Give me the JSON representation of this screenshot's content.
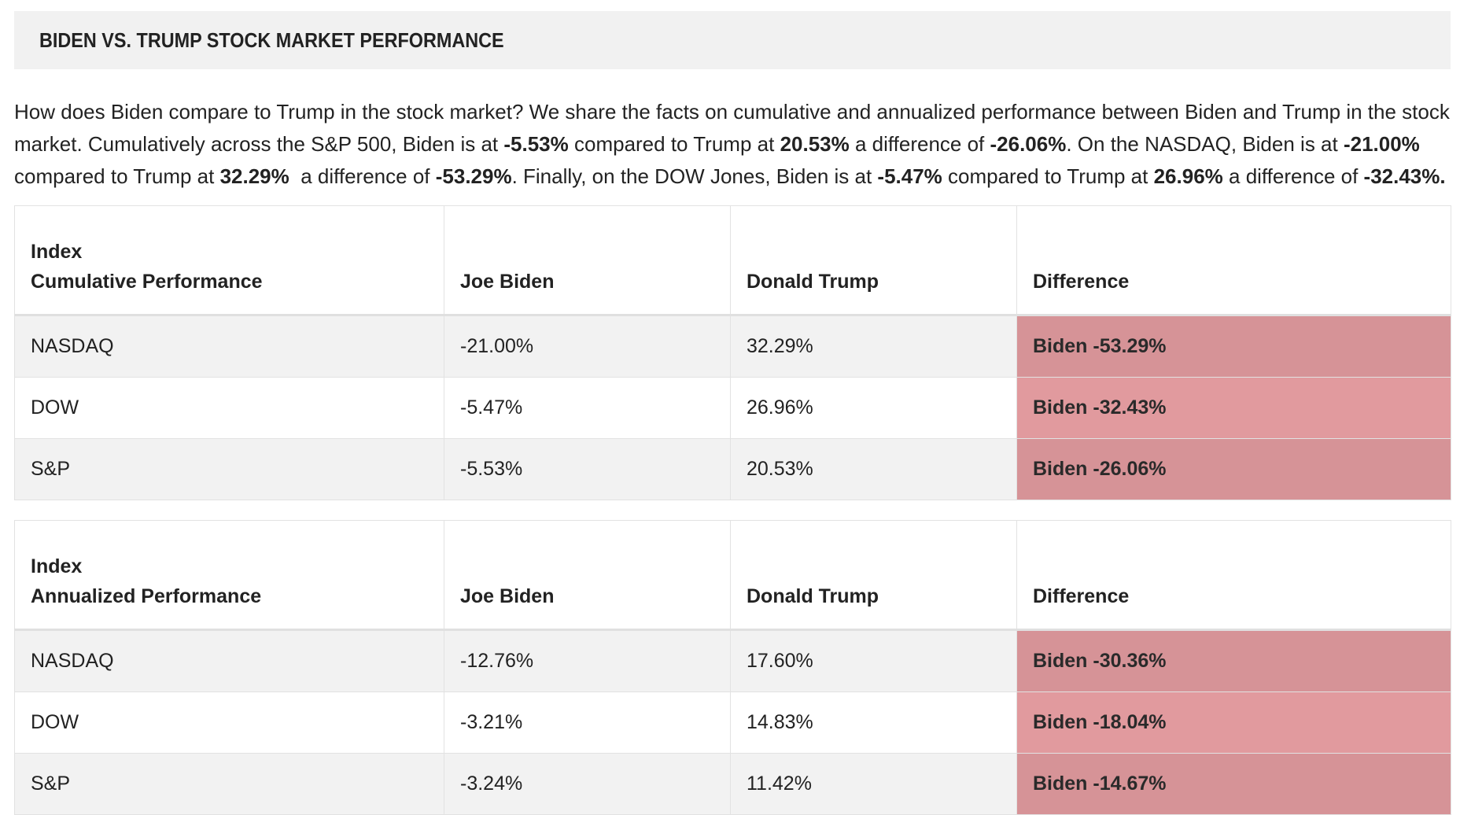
{
  "title": "BIDEN VS. TRUMP STOCK MARKET PERFORMANCE",
  "intro": {
    "parts": [
      {
        "text": "How does Biden compare to Trump in the stock market? We share the facts on cumulative and annualized performance between Biden and Trump in the stock market. Cumulatively across the S&P 500, Biden is at ",
        "bold": false
      },
      {
        "text": "-5.53%",
        "bold": true
      },
      {
        "text": " compared to Trump at ",
        "bold": false
      },
      {
        "text": "20.53%",
        "bold": true
      },
      {
        "text": " a difference of ",
        "bold": false
      },
      {
        "text": "-26.06%",
        "bold": true
      },
      {
        "text": ". On the NASDAQ, Biden is at ",
        "bold": false
      },
      {
        "text": "-21.00%",
        "bold": true
      },
      {
        "text": " compared to Trump at ",
        "bold": false
      },
      {
        "text": "32.29%",
        "bold": true
      },
      {
        "text": "  a difference of ",
        "bold": false
      },
      {
        "text": "-53.29%",
        "bold": true
      },
      {
        "text": ". Finally, on the DOW Jones, Biden is at ",
        "bold": false
      },
      {
        "text": "-5.47%",
        "bold": true
      },
      {
        "text": " compared to Trump at ",
        "bold": false
      },
      {
        "text": "26.96%",
        "bold": true
      },
      {
        "text": " a difference of ",
        "bold": false
      },
      {
        "text": "-32.43%.",
        "bold": true
      }
    ]
  },
  "tables": [
    {
      "header": {
        "col1_line1": "Index",
        "col1_line2": "Cumulative Performance",
        "col2": "Joe Biden",
        "col3": "Donald Trump",
        "col4": "Difference"
      },
      "rows": [
        {
          "index": "NASDAQ",
          "biden": "-21.00%",
          "trump": "32.29%",
          "difference": "Biden -53.29%"
        },
        {
          "index": "DOW",
          "biden": "-5.47%",
          "trump": "26.96%",
          "difference": "Biden -32.43%"
        },
        {
          "index": "S&P",
          "biden": "-5.53%",
          "trump": "20.53%",
          "difference": "Biden -26.06%"
        }
      ]
    },
    {
      "header": {
        "col1_line1": "Index",
        "col1_line2": "Annualized Performance",
        "col2": "Joe Biden",
        "col3": "Donald Trump",
        "col4": "Difference"
      },
      "rows": [
        {
          "index": "NASDAQ",
          "biden": "-12.76%",
          "trump": "17.60%",
          "difference": "Biden -30.36%"
        },
        {
          "index": "DOW",
          "biden": "-3.21%",
          "trump": "14.83%",
          "difference": "Biden -18.04%"
        },
        {
          "index": "S&P",
          "biden": "-3.24%",
          "trump": "11.42%",
          "difference": "Biden -14.67%"
        }
      ]
    }
  ],
  "colors": {
    "title_bg": "#f1f1f1",
    "row_stripe": "#f2f2f2",
    "difference_dark": "#d69397",
    "difference_light": "#e19a9e"
  }
}
